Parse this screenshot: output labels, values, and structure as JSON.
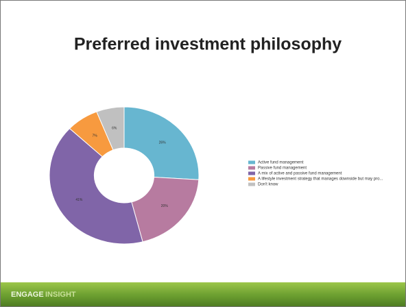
{
  "chart_data": {
    "type": "pie",
    "title": "Preferred investment philosophy",
    "categories": [
      "Active fund management",
      "Passive fund management",
      "A mix of active and passive fund management",
      "A lifestyle investment strategy that manages downside but may pro...",
      "Don't know"
    ],
    "values": [
      26,
      20,
      41,
      7,
      6
    ],
    "value_labels": [
      "26%",
      "20%",
      "41%",
      "7%",
      "6%"
    ],
    "colors": [
      "#67b6d0",
      "#b77ba0",
      "#8065a8",
      "#f79a3f",
      "#c0c0c0"
    ],
    "donut": true
  },
  "footer": {
    "brand_a": "ENGAGE",
    "brand_b": "INSIGHT"
  }
}
